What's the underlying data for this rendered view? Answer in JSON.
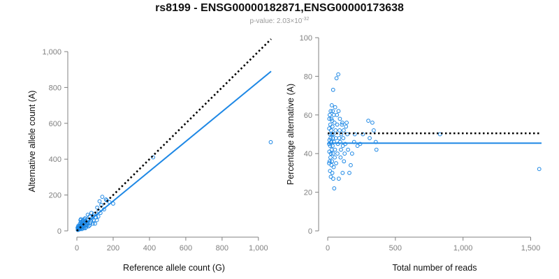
{
  "header": {
    "title": "rs8199 - ENSG00000182871,ENSG00000173638",
    "subtitle_label": "p-value: 2.03",
    "subtitle_times": "×10",
    "subtitle_exponent": "-32"
  },
  "colors": {
    "points": "#1e88e5",
    "fit_line": "#1e88e5",
    "reference_line": "#000000",
    "axis": "#808080"
  },
  "chart_data": [
    {
      "type": "scatter",
      "xlabel": "Reference allele count (G)",
      "ylabel": "Alternative allele count (A)",
      "xlim": [
        0,
        1070
      ],
      "ylim": [
        0,
        1000
      ],
      "xticks": [
        0,
        200,
        400,
        600,
        800,
        1000
      ],
      "xtick_labels": [
        "0",
        "200",
        "400",
        "600",
        "800",
        "1,000"
      ],
      "yticks": [
        0,
        200,
        400,
        600,
        800,
        1000
      ],
      "ytick_labels": [
        "0",
        "200",
        "400",
        "600",
        "800",
        "1,000"
      ],
      "grid": false,
      "points": [
        [
          1068,
          495
        ],
        [
          420,
          410
        ],
        [
          200,
          152
        ],
        [
          165,
          170
        ],
        [
          140,
          190
        ],
        [
          125,
          165
        ],
        [
          135,
          145
        ],
        [
          120,
          110
        ],
        [
          118,
          80
        ],
        [
          110,
          60
        ],
        [
          105,
          75
        ],
        [
          95,
          95
        ],
        [
          90,
          85
        ],
        [
          85,
          70
        ],
        [
          80,
          100
        ],
        [
          78,
          55
        ],
        [
          75,
          45
        ],
        [
          70,
          80
        ],
        [
          65,
          60
        ],
        [
          60,
          40
        ],
        [
          58,
          65
        ],
        [
          55,
          30
        ],
        [
          52,
          50
        ],
        [
          50,
          20
        ],
        [
          48,
          35
        ],
        [
          45,
          55
        ],
        [
          42,
          25
        ],
        [
          40,
          45
        ],
        [
          38,
          15
        ],
        [
          36,
          30
        ],
        [
          35,
          60
        ],
        [
          32,
          20
        ],
        [
          30,
          40
        ],
        [
          28,
          10
        ],
        [
          27,
          25
        ],
        [
          25,
          35
        ],
        [
          24,
          15
        ],
        [
          22,
          50
        ],
        [
          20,
          20
        ],
        [
          19,
          30
        ],
        [
          18,
          10
        ],
        [
          17,
          40
        ],
        [
          16,
          15
        ],
        [
          15,
          25
        ],
        [
          14,
          12
        ],
        [
          13,
          20
        ],
        [
          12,
          8
        ],
        [
          12,
          30
        ],
        [
          11,
          18
        ],
        [
          10,
          10
        ],
        [
          10,
          22
        ],
        [
          9,
          15
        ],
        [
          8,
          6
        ],
        [
          8,
          28
        ],
        [
          7,
          12
        ],
        [
          6,
          20
        ],
        [
          6,
          8
        ],
        [
          5,
          14
        ],
        [
          5,
          5
        ],
        [
          4,
          18
        ],
        [
          22,
          65
        ],
        [
          30,
          55
        ],
        [
          45,
          70
        ],
        [
          60,
          90
        ],
        [
          100,
          40
        ],
        [
          150,
          120
        ],
        [
          160,
          175
        ],
        [
          180,
          160
        ],
        [
          88,
          40
        ],
        [
          70,
          30
        ],
        [
          55,
          45
        ],
        [
          64,
          25
        ],
        [
          40,
          65
        ],
        [
          33,
          50
        ],
        [
          26,
          45
        ],
        [
          20,
          60
        ],
        [
          46,
          15
        ],
        [
          92,
          60
        ],
        [
          112,
          130
        ],
        [
          130,
          100
        ]
      ],
      "fit_line": [
        [
          0,
          0
        ],
        [
          1070,
          890
        ]
      ],
      "reference_line": [
        [
          0,
          0
        ],
        [
          1070,
          1070
        ]
      ]
    },
    {
      "type": "scatter",
      "xlabel": "Total number of reads",
      "ylabel": "Percentage alternative (A)",
      "xlim": [
        0,
        1580
      ],
      "ylim": [
        0,
        100
      ],
      "xticks": [
        0,
        500,
        1000,
        1500
      ],
      "xtick_labels": [
        "0",
        "500",
        "1,000",
        "1,500"
      ],
      "yticks": [
        0,
        20,
        40,
        60,
        80,
        100
      ],
      "ytick_labels": [
        "0",
        "20",
        "40",
        "60",
        "80",
        "100"
      ],
      "grid": false,
      "points": [
        [
          1563,
          32
        ],
        [
          830,
          50
        ],
        [
          360,
          42
        ],
        [
          355,
          46
        ],
        [
          340,
          52
        ],
        [
          330,
          56
        ],
        [
          310,
          48
        ],
        [
          300,
          57
        ],
        [
          260,
          50
        ],
        [
          240,
          45
        ],
        [
          220,
          44
        ],
        [
          200,
          50
        ],
        [
          195,
          46
        ],
        [
          180,
          40
        ],
        [
          170,
          34
        ],
        [
          160,
          30
        ],
        [
          150,
          42
        ],
        [
          145,
          50
        ],
        [
          140,
          56
        ],
        [
          135,
          54
        ],
        [
          130,
          45
        ],
        [
          125,
          40
        ],
        [
          120,
          36
        ],
        [
          118,
          52
        ],
        [
          115,
          48
        ],
        [
          112,
          44
        ],
        [
          110,
          30
        ],
        [
          108,
          56
        ],
        [
          105,
          55
        ],
        [
          100,
          50
        ],
        [
          98,
          42
        ],
        [
          95,
          38
        ],
        [
          92,
          46
        ],
        [
          90,
          58
        ],
        [
          88,
          52
        ],
        [
          85,
          48
        ],
        [
          82,
          27
        ],
        [
          80,
          62
        ],
        [
          78,
          81
        ],
        [
          75,
          45
        ],
        [
          72,
          40
        ],
        [
          70,
          55
        ],
        [
          68,
          60
        ],
        [
          65,
          79
        ],
        [
          62,
          35
        ],
        [
          60,
          48
        ],
        [
          58,
          52
        ],
        [
          55,
          64
        ],
        [
          54,
          42
        ],
        [
          52,
          38
        ],
        [
          50,
          56
        ],
        [
          48,
          22
        ],
        [
          46,
          46
        ],
        [
          45,
          60
        ],
        [
          44,
          33
        ],
        [
          42,
          50
        ],
        [
          41,
          27
        ],
        [
          40,
          73
        ],
        [
          39,
          40
        ],
        [
          38,
          48
        ],
        [
          37,
          62
        ],
        [
          36,
          44
        ],
        [
          35,
          54
        ],
        [
          34,
          30
        ],
        [
          33,
          57
        ],
        [
          32,
          36
        ],
        [
          31,
          50
        ],
        [
          30,
          65
        ],
        [
          29,
          42
        ],
        [
          28,
          34
        ],
        [
          27,
          58
        ],
        [
          26,
          46
        ],
        [
          25,
          52
        ],
        [
          24,
          40
        ],
        [
          23,
          28
        ],
        [
          22,
          62
        ],
        [
          21,
          48
        ],
        [
          20,
          38
        ],
        [
          19,
          55
        ],
        [
          18,
          44
        ],
        [
          17,
          31
        ],
        [
          16,
          50
        ],
        [
          15,
          60
        ],
        [
          14,
          36
        ],
        [
          13,
          47
        ],
        [
          12,
          41
        ],
        [
          12,
          58
        ],
        [
          11,
          53
        ],
        [
          10,
          45
        ],
        [
          10,
          35
        ]
      ],
      "fit_line": [
        [
          0,
          45.4
        ],
        [
          1580,
          45.4
        ]
      ],
      "reference_line": [
        [
          0,
          50.5
        ],
        [
          1580,
          50.5
        ]
      ]
    }
  ]
}
